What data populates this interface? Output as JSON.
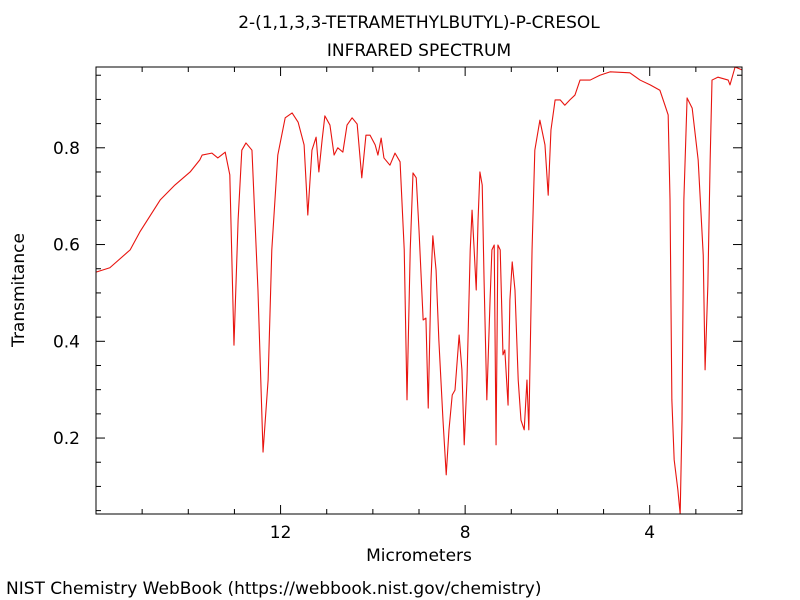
{
  "chart_data": {
    "type": "line",
    "title": "2-(1,1,3,3-TETRAMETHYLBUTYL)-P-CRESOL",
    "subtitle": "INFRARED SPECTRUM",
    "x_label": "Micrometers",
    "y_label": "Transmitance",
    "footer": "NIST Chemistry WebBook (https://webbook.nist.gov/chemistry)",
    "color": "#e8140f",
    "xlim": [
      16,
      2
    ],
    "ylim": [
      0.043,
      0.967
    ],
    "xticks": [
      12,
      8,
      4
    ],
    "yticks": [
      0.2,
      0.4,
      0.6,
      0.8
    ],
    "xticks_minor": [
      15,
      14,
      13,
      11,
      10,
      9,
      7,
      6,
      5,
      3
    ],
    "yticks_minor": [
      0.05,
      0.1,
      0.15,
      0.25,
      0.3,
      0.35,
      0.45,
      0.5,
      0.55,
      0.65,
      0.7,
      0.75,
      0.85,
      0.9,
      0.95
    ],
    "x": [
      16.0,
      15.7,
      15.26,
      15.05,
      14.61,
      14.29,
      13.96,
      13.75,
      13.7,
      13.49,
      13.36,
      13.2,
      13.1,
      13.01,
      12.92,
      12.84,
      12.75,
      12.62,
      12.49,
      12.38,
      12.27,
      12.19,
      12.06,
      11.9,
      11.75,
      11.62,
      11.49,
      11.41,
      11.32,
      11.23,
      11.17,
      11.1,
      11.04,
      10.93,
      10.84,
      10.76,
      10.65,
      10.56,
      10.45,
      10.34,
      10.24,
      10.15,
      10.06,
      9.95,
      9.89,
      9.82,
      9.76,
      9.63,
      9.52,
      9.41,
      9.32,
      9.26,
      9.19,
      9.13,
      9.06,
      9.0,
      8.91,
      8.85,
      8.8,
      8.74,
      8.7,
      8.63,
      8.57,
      8.48,
      8.41,
      8.35,
      8.28,
      8.22,
      8.13,
      8.07,
      8.02,
      7.96,
      7.89,
      7.85,
      7.81,
      7.76,
      7.72,
      7.68,
      7.63,
      7.59,
      7.53,
      7.46,
      7.42,
      7.37,
      7.33,
      7.29,
      7.24,
      7.18,
      7.14,
      7.07,
      7.03,
      6.98,
      6.92,
      6.85,
      6.79,
      6.72,
      6.66,
      6.62,
      6.55,
      6.49,
      6.38,
      6.27,
      6.2,
      6.14,
      6.05,
      5.94,
      5.84,
      5.73,
      5.62,
      5.51,
      5.29,
      5.08,
      4.86,
      4.43,
      4.21,
      3.99,
      3.78,
      3.67,
      3.6,
      3.56,
      3.52,
      3.47,
      3.39,
      3.34,
      3.3,
      3.26,
      3.19,
      3.08,
      2.95,
      2.84,
      2.8,
      2.74,
      2.69,
      2.65,
      2.52,
      2.3,
      2.26,
      2.15,
      2.0
    ],
    "values": [
      0.543,
      0.552,
      0.589,
      0.626,
      0.692,
      0.723,
      0.75,
      0.775,
      0.785,
      0.789,
      0.779,
      0.791,
      0.744,
      0.392,
      0.651,
      0.795,
      0.81,
      0.795,
      0.506,
      0.171,
      0.32,
      0.589,
      0.785,
      0.862,
      0.872,
      0.853,
      0.806,
      0.661,
      0.795,
      0.822,
      0.75,
      0.816,
      0.866,
      0.847,
      0.785,
      0.8,
      0.791,
      0.847,
      0.862,
      0.849,
      0.738,
      0.826,
      0.826,
      0.806,
      0.785,
      0.82,
      0.779,
      0.764,
      0.789,
      0.771,
      0.589,
      0.279,
      0.589,
      0.748,
      0.738,
      0.63,
      0.444,
      0.448,
      0.262,
      0.527,
      0.618,
      0.547,
      0.403,
      0.237,
      0.124,
      0.217,
      0.289,
      0.299,
      0.413,
      0.341,
      0.186,
      0.32,
      0.589,
      0.671,
      0.599,
      0.506,
      0.651,
      0.75,
      0.723,
      0.527,
      0.279,
      0.485,
      0.589,
      0.599,
      0.186,
      0.599,
      0.589,
      0.372,
      0.382,
      0.268,
      0.485,
      0.564,
      0.506,
      0.32,
      0.237,
      0.217,
      0.32,
      0.217,
      0.589,
      0.795,
      0.857,
      0.806,
      0.702,
      0.837,
      0.899,
      0.899,
      0.888,
      0.899,
      0.909,
      0.94,
      0.94,
      0.95,
      0.957,
      0.955,
      0.94,
      0.93,
      0.919,
      0.888,
      0.868,
      0.692,
      0.279,
      0.155,
      0.093,
      0.043,
      0.237,
      0.692,
      0.903,
      0.882,
      0.775,
      0.578,
      0.341,
      0.516,
      0.775,
      0.94,
      0.946,
      0.94,
      0.93,
      0.967,
      0.961
    ]
  }
}
